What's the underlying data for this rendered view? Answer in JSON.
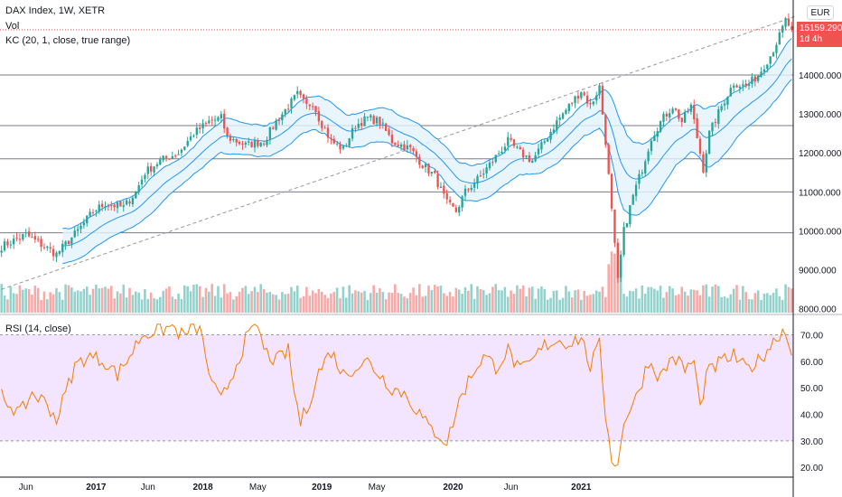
{
  "header": {
    "title": "DAX Index, 1W, XETR",
    "vol_label": "Vol",
    "kc_label": "KC (20, 1, close, true range)",
    "rsi_label": "RSI (14, close)",
    "currency": "EUR",
    "last_price": "15159.290",
    "countdown": "1d 4h"
  },
  "colors": {
    "up": "#26a69a",
    "down": "#ef5350",
    "keltner": "#2196f3",
    "keltner_fill": "#e3f2fd",
    "rsi_line": "#f57c00",
    "rsi_band": "#f3e5ff",
    "hlines": "#787b86",
    "trendline": "#9598a1"
  },
  "chart_data": {
    "type": "candlestick",
    "title": "DAX Index, 1W, XETR",
    "price_axis": {
      "ticks": [
        "8000.000",
        "9000.000",
        "10000.000",
        "11000.000",
        "12000.000",
        "13000.000",
        "14000.000"
      ],
      "ylim": [
        7900,
        15600
      ]
    },
    "rsi_axis": {
      "ticks": [
        "20.00",
        "30.00",
        "40.00",
        "50.00",
        "60.00",
        "70.00"
      ],
      "ylim": [
        17,
        77
      ]
    },
    "time_axis": {
      "ticks": [
        "Jun",
        "2017",
        "Jun",
        "2018",
        "May",
        "2019",
        "May",
        "2020",
        "Jun",
        "2021"
      ]
    },
    "horizontal_levels": [
      14000,
      12700,
      11850,
      11000,
      9950
    ],
    "trendline": {
      "from_week": 0,
      "from_price": 8500,
      "to_week": 260,
      "to_price": 15500
    },
    "current_price": 15159.29,
    "rsi_bands": [
      30,
      70
    ],
    "close_path": [
      [
        0,
        9600
      ],
      [
        8,
        9900
      ],
      [
        12,
        9700
      ],
      [
        18,
        9400
      ],
      [
        25,
        10000
      ],
      [
        30,
        10500
      ],
      [
        34,
        10700
      ],
      [
        40,
        10600
      ],
      [
        44,
        11000
      ],
      [
        47,
        11500
      ],
      [
        52,
        11800
      ],
      [
        58,
        12000
      ],
      [
        63,
        12500
      ],
      [
        68,
        12800
      ],
      [
        72,
        12900
      ],
      [
        74,
        12400
      ],
      [
        80,
        12200
      ],
      [
        86,
        12300
      ],
      [
        90,
        12800
      ],
      [
        94,
        13200
      ],
      [
        97,
        13500
      ],
      [
        100,
        13200
      ],
      [
        102,
        13300
      ],
      [
        104,
        12900
      ],
      [
        108,
        12300
      ],
      [
        112,
        12100
      ],
      [
        116,
        12700
      ],
      [
        120,
        12900
      ],
      [
        124,
        12800
      ],
      [
        128,
        12300
      ],
      [
        134,
        12100
      ],
      [
        138,
        11700
      ],
      [
        142,
        11400
      ],
      [
        146,
        10700
      ],
      [
        149,
        10500
      ],
      [
        152,
        11000
      ],
      [
        157,
        11400
      ],
      [
        162,
        11900
      ],
      [
        166,
        12300
      ],
      [
        170,
        12000
      ],
      [
        174,
        11800
      ],
      [
        178,
        12300
      ],
      [
        182,
        12800
      ],
      [
        186,
        13200
      ],
      [
        190,
        13600
      ],
      [
        193,
        13200
      ],
      [
        196,
        13700
      ],
      [
        198,
        12300
      ],
      [
        200,
        10500
      ],
      [
        201,
        9600
      ],
      [
        202,
        8700
      ],
      [
        204,
        10000
      ],
      [
        207,
        10900
      ],
      [
        210,
        11600
      ],
      [
        213,
        12400
      ],
      [
        216,
        12800
      ],
      [
        220,
        13200
      ],
      [
        223,
        12800
      ],
      [
        226,
        13200
      ],
      [
        228,
        12400
      ],
      [
        230,
        11600
      ],
      [
        232,
        12500
      ],
      [
        236,
        13200
      ],
      [
        240,
        13800
      ],
      [
        244,
        13700
      ],
      [
        248,
        14000
      ],
      [
        252,
        14500
      ],
      [
        255,
        15000
      ],
      [
        257,
        15400
      ],
      [
        259,
        15159
      ]
    ],
    "rsi_path": [
      [
        0,
        47
      ],
      [
        6,
        40
      ],
      [
        10,
        48
      ],
      [
        15,
        44
      ],
      [
        18,
        38
      ],
      [
        24,
        58
      ],
      [
        28,
        62
      ],
      [
        34,
        60
      ],
      [
        38,
        55
      ],
      [
        42,
        62
      ],
      [
        46,
        70
      ],
      [
        52,
        72
      ],
      [
        56,
        73
      ],
      [
        60,
        69
      ],
      [
        62,
        74
      ],
      [
        65,
        72
      ],
      [
        69,
        51
      ],
      [
        72,
        45
      ],
      [
        76,
        56
      ],
      [
        80,
        68
      ],
      [
        84,
        74
      ],
      [
        86,
        64
      ],
      [
        90,
        60
      ],
      [
        94,
        64
      ],
      [
        96,
        48
      ],
      [
        98,
        37
      ],
      [
        100,
        42
      ],
      [
        104,
        56
      ],
      [
        108,
        64
      ],
      [
        112,
        55
      ],
      [
        116,
        58
      ],
      [
        120,
        60
      ],
      [
        124,
        55
      ],
      [
        128,
        50
      ],
      [
        132,
        48
      ],
      [
        136,
        42
      ],
      [
        140,
        35
      ],
      [
        144,
        32
      ],
      [
        146,
        29
      ],
      [
        150,
        45
      ],
      [
        154,
        55
      ],
      [
        158,
        62
      ],
      [
        162,
        58
      ],
      [
        166,
        64
      ],
      [
        170,
        56
      ],
      [
        174,
        60
      ],
      [
        178,
        66
      ],
      [
        182,
        68
      ],
      [
        186,
        67
      ],
      [
        190,
        69
      ],
      [
        193,
        58
      ],
      [
        196,
        66
      ],
      [
        198,
        40
      ],
      [
        200,
        24
      ],
      [
        202,
        20
      ],
      [
        204,
        38
      ],
      [
        208,
        46
      ],
      [
        212,
        60
      ],
      [
        216,
        54
      ],
      [
        220,
        62
      ],
      [
        224,
        57
      ],
      [
        227,
        60
      ],
      [
        229,
        42
      ],
      [
        231,
        55
      ],
      [
        236,
        60
      ],
      [
        240,
        62
      ],
      [
        244,
        57
      ],
      [
        248,
        60
      ],
      [
        252,
        66
      ],
      [
        256,
        72
      ],
      [
        259,
        65
      ]
    ]
  }
}
